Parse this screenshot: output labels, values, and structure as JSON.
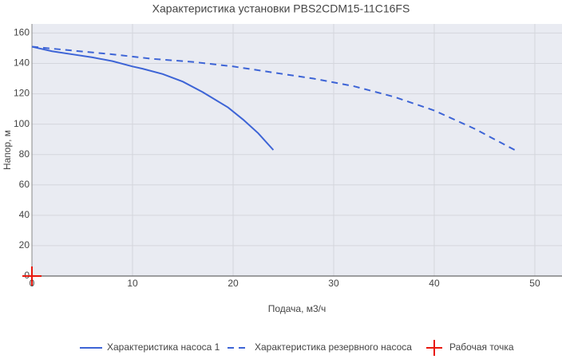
{
  "chart_data": {
    "type": "line",
    "title": "Характеристика установки PBS2CDM15-11C16FS",
    "x_label": "Подача, м3/ч",
    "y_label": "Напор, м",
    "xlim": [
      0,
      52.7
    ],
    "xticks": [
      0,
      10,
      20,
      30,
      40,
      50
    ],
    "ylim": [
      0,
      166
    ],
    "yticks": [
      0,
      20,
      40,
      60,
      80,
      100,
      120,
      140,
      160
    ],
    "grid": true,
    "legend": "bottom",
    "series": [
      {
        "name": "Характеристика насоса 1",
        "color": "#3d64d6",
        "line_style": "solid",
        "x": [
          0,
          2,
          4,
          6,
          8,
          10,
          11,
          13,
          15,
          17,
          18,
          19.5,
          21,
          22.5,
          24
        ],
        "values": [
          151,
          148,
          146,
          144,
          141.5,
          138,
          136.5,
          133,
          128,
          121,
          117,
          111,
          103,
          94,
          83
        ]
      },
      {
        "name": "Характеристика резервного насоса",
        "color": "#3d64d6",
        "line_style": "dash",
        "x": [
          0,
          4,
          8,
          12,
          16,
          20,
          24,
          28,
          32,
          36,
          40,
          44,
          48
        ],
        "values": [
          151,
          148.5,
          146,
          143,
          141,
          138,
          134,
          130,
          125,
          118,
          109,
          97,
          83
        ]
      },
      {
        "name": "Рабочая точка",
        "color": "#e8170c",
        "line_style": "markers",
        "x": [
          0
        ],
        "values": [
          0
        ]
      }
    ]
  }
}
